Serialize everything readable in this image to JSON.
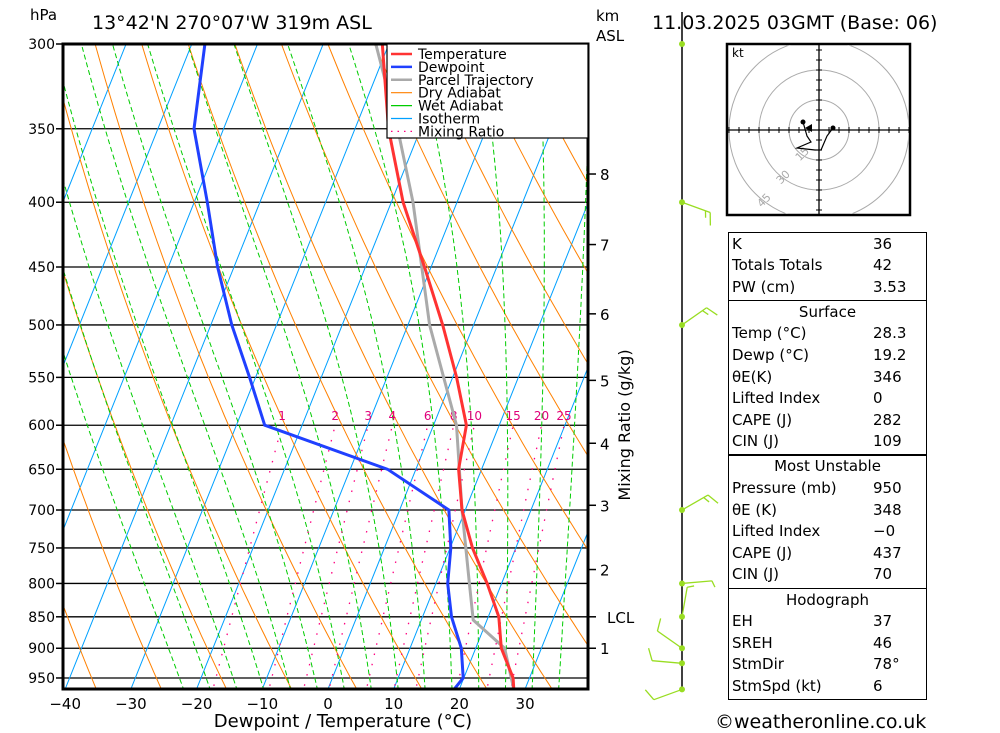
{
  "header": {
    "units_left": "hPa",
    "location": "13°42'N  270°07'W  319m  ASL",
    "units_right_1": "km",
    "units_right_2": "ASL",
    "datetime": "11.03.2025  03GMT (Base: 06)"
  },
  "footer": {
    "copyright": "©weatheronline.co.uk"
  },
  "legend": [
    {
      "label": "Temperature",
      "color": "#ff3333"
    },
    {
      "label": "Dewpoint",
      "color": "#2040ff"
    },
    {
      "label": "Parcel Trajectory",
      "color": "#aaaaaa"
    },
    {
      "label": "Dry Adiabat",
      "color": "#ff8000"
    },
    {
      "label": "Wet Adiabat",
      "color": "#00cc00"
    },
    {
      "label": "Isotherm",
      "color": "#00a0ff"
    },
    {
      "label": "Mixing Ratio",
      "color": "#ff0080"
    }
  ],
  "chart_data": {
    "type": "skew-t",
    "xlabel": "Dewpoint / Temperature (°C)",
    "ylabel": "hPa",
    "right_label": "Mixing Ratio (g/kg)",
    "xlim": [
      -40,
      39
    ],
    "pressure_range": [
      300,
      970
    ],
    "x_ticks": [
      "−40",
      "−30",
      "−20",
      "−10",
      "0",
      "10",
      "20",
      "30"
    ],
    "x_tick_values": [
      -40,
      -30,
      -20,
      -10,
      0,
      10,
      20,
      30
    ],
    "pressure_ticks": [
      "300",
      "350",
      "400",
      "450",
      "500",
      "550",
      "600",
      "650",
      "700",
      "750",
      "800",
      "850",
      "900",
      "950"
    ],
    "pressure_tick_values": [
      300,
      350,
      400,
      450,
      500,
      550,
      600,
      650,
      700,
      750,
      800,
      850,
      900,
      950
    ],
    "height_ticks": [
      {
        "label": "8",
        "p": 380
      },
      {
        "label": "7",
        "p": 432
      },
      {
        "label": "6",
        "p": 490
      },
      {
        "label": "5",
        "p": 553
      },
      {
        "label": "4",
        "p": 620
      },
      {
        "label": "3",
        "p": 694
      },
      {
        "label": "2",
        "p": 780
      },
      {
        "label": "LCL",
        "p": 850
      },
      {
        "label": "1",
        "p": 900
      }
    ],
    "mixing_ratio_labels": [
      "1",
      "2",
      "3",
      "4",
      "6",
      "8",
      "10",
      "15",
      "20",
      "25"
    ],
    "mixing_ratio_values": [
      1,
      2,
      3,
      4,
      6,
      8,
      10,
      15,
      20,
      25
    ],
    "temperature": [
      [
        970,
        28.3
      ],
      [
        950,
        27.5
      ],
      [
        900,
        23.9
      ],
      [
        850,
        21.6
      ],
      [
        800,
        17.8
      ],
      [
        750,
        13.4
      ],
      [
        700,
        9.5
      ],
      [
        650,
        6.5
      ],
      [
        600,
        5.0
      ],
      [
        550,
        0.6
      ],
      [
        500,
        -4.7
      ],
      [
        450,
        -11.0
      ],
      [
        400,
        -18.2
      ],
      [
        350,
        -24.9
      ],
      [
        300,
        -31.0
      ]
    ],
    "dewpoint": [
      [
        970,
        19.2
      ],
      [
        950,
        19.9
      ],
      [
        900,
        17.8
      ],
      [
        850,
        14.4
      ],
      [
        800,
        11.8
      ],
      [
        750,
        10.1
      ],
      [
        700,
        7.5
      ],
      [
        650,
        -4.3
      ],
      [
        600,
        -25.7
      ],
      [
        550,
        -30.9
      ],
      [
        500,
        -36.8
      ],
      [
        450,
        -42.5
      ],
      [
        400,
        -48.0
      ],
      [
        350,
        -54.5
      ],
      [
        300,
        -58.0
      ]
    ],
    "parcel": [
      [
        970,
        28.3
      ],
      [
        900,
        24.4
      ],
      [
        855,
        17.9
      ],
      [
        800,
        15.1
      ],
      [
        700,
        9.5
      ],
      [
        600,
        3.5
      ],
      [
        500,
        -6.7
      ],
      [
        400,
        -16.7
      ],
      [
        350,
        -23.5
      ],
      [
        300,
        -32.0
      ]
    ],
    "winds": [
      {
        "p": 300,
        "dir": 0,
        "speed": 0
      },
      {
        "p": 400,
        "dir": 110,
        "speed": 15
      },
      {
        "p": 500,
        "dir": 55,
        "speed": 15
      },
      {
        "p": 700,
        "dir": 60,
        "speed": 15
      },
      {
        "p": 800,
        "dir": 85,
        "speed": 5
      },
      {
        "p": 850,
        "dir": 10,
        "speed": 5
      },
      {
        "p": 900,
        "dir": 305,
        "speed": 10
      },
      {
        "p": 925,
        "dir": 275,
        "speed": 10
      },
      {
        "p": 970,
        "dir": 250,
        "speed": 10
      }
    ]
  },
  "hodograph": {
    "unit": "kt",
    "ring_labels": [
      "15",
      "30",
      "45"
    ],
    "ring_values": [
      15,
      30,
      45
    ],
    "trace_kt": [
      [
        -8,
        4
      ],
      [
        -6,
        -3
      ],
      [
        -4,
        -6
      ],
      [
        -11,
        -9
      ],
      [
        -2,
        -10
      ],
      [
        1,
        -10
      ],
      [
        4,
        -3
      ],
      [
        7,
        1
      ]
    ],
    "storm_kt": [
      -5,
      1
    ]
  },
  "stats": {
    "indices": [
      {
        "label": "K",
        "value": "36"
      },
      {
        "label": "Totals Totals",
        "value": "42"
      },
      {
        "label": "PW (cm)",
        "value": "3.53"
      }
    ],
    "surface": {
      "title": "Surface",
      "rows": [
        {
          "label": "Temp (°C)",
          "value": "28.3"
        },
        {
          "label": "Dewp (°C)",
          "value": "19.2"
        },
        {
          "label": "θE(K)",
          "value": "346"
        },
        {
          "label": "Lifted Index",
          "value": "0"
        },
        {
          "label": "CAPE (J)",
          "value": "282"
        },
        {
          "label": "CIN (J)",
          "value": "109"
        }
      ]
    },
    "most_unstable": {
      "title": "Most Unstable",
      "rows": [
        {
          "label": "Pressure (mb)",
          "value": "950"
        },
        {
          "label": "θE (K)",
          "value": "348"
        },
        {
          "label": "Lifted Index",
          "value": "−0"
        },
        {
          "label": "CAPE (J)",
          "value": "437"
        },
        {
          "label": "CIN (J)",
          "value": "70"
        }
      ]
    },
    "hodograph": {
      "title": "Hodograph",
      "rows": [
        {
          "label": "EH",
          "value": "37"
        },
        {
          "label": "SREH",
          "value": "46"
        },
        {
          "label": "StmDir",
          "value": "78°"
        },
        {
          "label": "StmSpd (kt)",
          "value": "6"
        }
      ]
    }
  }
}
